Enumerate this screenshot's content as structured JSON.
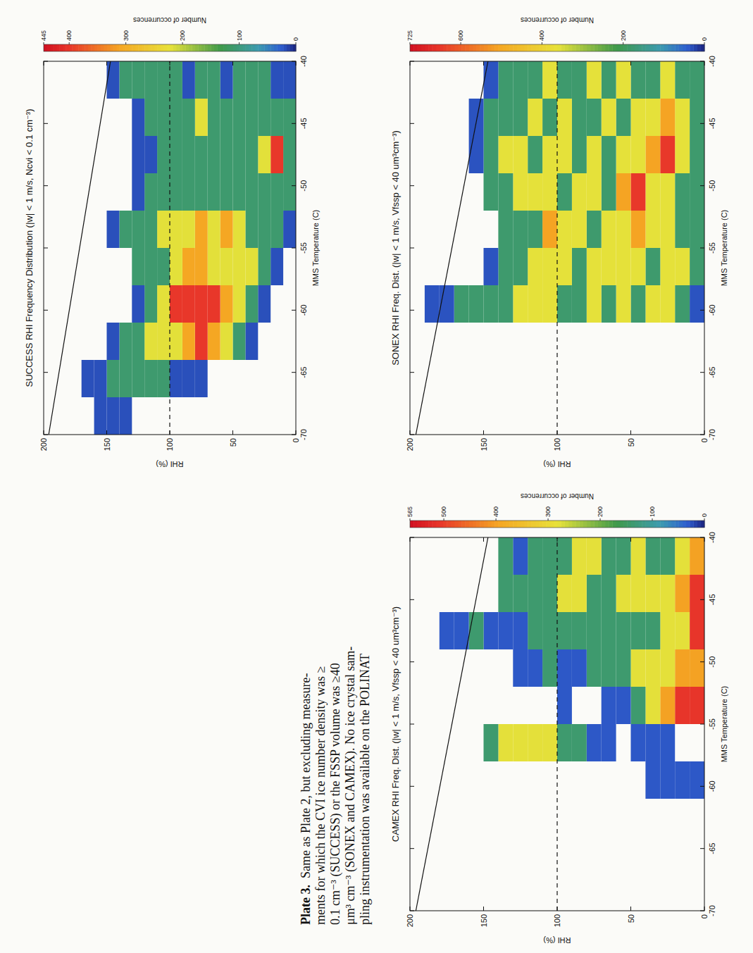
{
  "chart_data": [
    {
      "type": "heatmap",
      "title": "SUCCESS RHI Frequency Distribution (|w| < 1 m/s, Ncvi < 0.1 cm⁻³)",
      "x_label": "MMS Temperature (C)",
      "y_label": "RHI (%)",
      "xlim": [
        -70,
        -40
      ],
      "ylim": [
        0,
        200
      ],
      "xticks": [
        -70,
        -65,
        -60,
        -55,
        -50,
        -45,
        -40
      ],
      "yticks": [
        0,
        50,
        100,
        150,
        200
      ],
      "grid": false,
      "x_bins": [
        -70,
        -67,
        -64,
        -61,
        -58,
        -55,
        -52,
        -49,
        -46,
        -43,
        -40
      ],
      "y_bins": [
        0,
        10,
        20,
        30,
        40,
        50,
        60,
        70,
        80,
        90,
        100,
        110,
        120,
        130,
        140,
        150,
        160,
        170,
        180,
        190,
        200
      ],
      "cells": [
        [
          null,
          null,
          null,
          null,
          null,
          20,
          110,
          110,
          110,
          20
        ],
        [
          null,
          null,
          null,
          null,
          20,
          110,
          110,
          400,
          110,
          20
        ],
        [
          null,
          null,
          null,
          20,
          110,
          110,
          110,
          220,
          110,
          110
        ],
        [
          null,
          null,
          20,
          110,
          220,
          110,
          110,
          110,
          110,
          110
        ],
        [
          null,
          null,
          110,
          220,
          220,
          220,
          110,
          110,
          110,
          110
        ],
        [
          null,
          null,
          220,
          310,
          220,
          310,
          110,
          110,
          110,
          20
        ],
        [
          null,
          null,
          310,
          400,
          220,
          220,
          110,
          110,
          110,
          110
        ],
        [
          null,
          20,
          400,
          400,
          310,
          310,
          110,
          110,
          220,
          110
        ],
        [
          null,
          20,
          310,
          400,
          310,
          220,
          110,
          110,
          110,
          20
        ],
        [
          null,
          20,
          220,
          400,
          220,
          220,
          110,
          110,
          110,
          110
        ],
        [
          null,
          110,
          220,
          220,
          110,
          220,
          110,
          110,
          110,
          110
        ],
        [
          null,
          110,
          220,
          110,
          110,
          110,
          110,
          20,
          110,
          110
        ],
        [
          null,
          110,
          110,
          20,
          110,
          110,
          20,
          20,
          20,
          110
        ],
        [
          20,
          110,
          110,
          null,
          null,
          110,
          null,
          null,
          null,
          110
        ],
        [
          20,
          110,
          20,
          null,
          null,
          20,
          null,
          null,
          null,
          20
        ],
        [
          20,
          20,
          null,
          null,
          null,
          null,
          null,
          null,
          null,
          null
        ],
        [
          null,
          20,
          null,
          null,
          null,
          null,
          null,
          null,
          null,
          null
        ],
        [
          null,
          null,
          null,
          null,
          null,
          null,
          null,
          null,
          null,
          null
        ],
        [
          null,
          null,
          null,
          null,
          null,
          null,
          null,
          null,
          null,
          null
        ],
        [
          null,
          null,
          null,
          null,
          null,
          null,
          null,
          null,
          null,
          null
        ]
      ],
      "colorbar_label": "Number of occurrences",
      "colorbar_range": [
        0,
        445
      ],
      "colorbar_ticks": [
        0,
        100,
        200,
        300,
        400,
        445
      ],
      "series": [
        {
          "type": "line",
          "line_style": "solid",
          "x": [
            -70,
            -40
          ],
          "values": [
            196,
            147
          ]
        },
        {
          "type": "line",
          "line_style": "dashed",
          "x": [
            -70,
            -40
          ],
          "values": [
            100,
            100
          ]
        }
      ]
    },
    {
      "type": "heatmap",
      "title": "SONEX RHI Freq. Dist. (|w| < 1 m/s, Vfssp < 40 um³cm⁻³)",
      "x_label": "MMS Temperature (C)",
      "y_label": "RHI (%)",
      "xlim": [
        -70,
        -40
      ],
      "ylim": [
        0,
        200
      ],
      "xticks": [
        -70,
        -65,
        -60,
        -55,
        -50,
        -45,
        -40
      ],
      "yticks": [
        0,
        50,
        100,
        150,
        200
      ],
      "grid": false,
      "x_bins": [
        -70,
        -67,
        -64,
        -61,
        -58,
        -55,
        -52,
        -49,
        -46,
        -43,
        -40
      ],
      "y_bins": [
        0,
        10,
        20,
        30,
        40,
        50,
        60,
        70,
        80,
        90,
        100,
        110,
        120,
        130,
        140,
        150,
        160,
        170,
        180,
        190,
        200
      ],
      "cells": [
        [
          null,
          null,
          null,
          35,
          180,
          180,
          180,
          180,
          180,
          180
        ],
        [
          null,
          null,
          null,
          180,
          360,
          180,
          180,
          360,
          360,
          180
        ],
        [
          null,
          null,
          null,
          360,
          360,
          360,
          360,
          650,
          510,
          360
        ],
        [
          null,
          null,
          null,
          360,
          180,
          360,
          360,
          510,
          360,
          180
        ],
        [
          null,
          null,
          null,
          180,
          360,
          510,
          650,
          360,
          360,
          180
        ],
        [
          null,
          null,
          null,
          360,
          360,
          360,
          510,
          360,
          180,
          360
        ],
        [
          null,
          null,
          null,
          180,
          360,
          360,
          180,
          180,
          360,
          180
        ],
        [
          null,
          null,
          null,
          360,
          360,
          180,
          360,
          360,
          180,
          360
        ],
        [
          null,
          null,
          null,
          180,
          180,
          360,
          360,
          180,
          180,
          180
        ],
        [
          null,
          null,
          null,
          180,
          360,
          360,
          180,
          360,
          360,
          180
        ],
        [
          null,
          null,
          null,
          360,
          360,
          510,
          360,
          360,
          180,
          360
        ],
        [
          null,
          null,
          null,
          360,
          360,
          180,
          360,
          180,
          360,
          180
        ],
        [
          null,
          null,
          null,
          360,
          180,
          180,
          360,
          360,
          180,
          180
        ],
        [
          null,
          null,
          null,
          180,
          180,
          180,
          180,
          360,
          180,
          180
        ],
        [
          null,
          null,
          null,
          180,
          35,
          null,
          180,
          180,
          180,
          35
        ],
        [
          null,
          null,
          null,
          180,
          null,
          null,
          null,
          35,
          35,
          null
        ],
        [
          null,
          null,
          null,
          180,
          null,
          null,
          null,
          null,
          null,
          null
        ],
        [
          null,
          null,
          null,
          35,
          null,
          null,
          null,
          null,
          null,
          null
        ],
        [
          null,
          null,
          null,
          35,
          null,
          null,
          null,
          null,
          null,
          null
        ],
        [
          null,
          null,
          null,
          null,
          null,
          null,
          null,
          null,
          null,
          null
        ]
      ],
      "colorbar_label": "Number of occurrences",
      "colorbar_range": [
        0,
        725
      ],
      "colorbar_ticks": [
        0,
        200,
        400,
        600,
        725
      ],
      "series": [
        {
          "type": "line",
          "line_style": "solid",
          "x": [
            -70,
            -40
          ],
          "values": [
            196,
            147
          ]
        },
        {
          "type": "line",
          "line_style": "dashed",
          "x": [
            -70,
            -40
          ],
          "values": [
            100,
            100
          ]
        }
      ]
    },
    {
      "type": "heatmap",
      "title": "CAMEX RHI Freq. Dist. (|w| < 1 m/s, Vfssp < 40 um³cm⁻³)",
      "x_label": "MMS Temperature (C)",
      "y_label": "RHI (%)",
      "xlim": [
        -70,
        -40
      ],
      "ylim": [
        0,
        200
      ],
      "xticks": [
        -70,
        -65,
        -60,
        -55,
        -50,
        -45,
        -40
      ],
      "yticks": [
        0,
        50,
        100,
        150,
        200
      ],
      "grid": false,
      "x_bins": [
        -70,
        -67,
        -64,
        -61,
        -58,
        -55,
        -52,
        -49,
        -46,
        -43,
        -40
      ],
      "y_bins": [
        0,
        10,
        20,
        30,
        40,
        50,
        60,
        70,
        80,
        90,
        100,
        110,
        120,
        130,
        140,
        150,
        160,
        170,
        180,
        190,
        200
      ],
      "cells": [
        [
          null,
          null,
          null,
          30,
          null,
          510,
          400,
          510,
          510,
          400
        ],
        [
          null,
          null,
          null,
          30,
          null,
          510,
          400,
          280,
          400,
          280
        ],
        [
          null,
          null,
          null,
          30,
          30,
          400,
          280,
          280,
          280,
          140
        ],
        [
          null,
          null,
          null,
          30,
          30,
          280,
          280,
          140,
          280,
          140
        ],
        [
          null,
          null,
          null,
          null,
          30,
          140,
          280,
          140,
          280,
          280
        ],
        [
          null,
          null,
          null,
          null,
          null,
          30,
          140,
          140,
          280,
          140
        ],
        [
          null,
          null,
          null,
          null,
          30,
          30,
          140,
          140,
          140,
          140
        ],
        [
          null,
          null,
          null,
          null,
          30,
          null,
          140,
          140,
          140,
          280
        ],
        [
          null,
          null,
          null,
          null,
          140,
          null,
          30,
          140,
          280,
          280
        ],
        [
          null,
          null,
          null,
          null,
          140,
          30,
          30,
          140,
          280,
          140
        ],
        [
          null,
          null,
          null,
          null,
          280,
          null,
          140,
          140,
          140,
          140
        ],
        [
          null,
          null,
          null,
          null,
          280,
          null,
          30,
          140,
          140,
          140
        ],
        [
          null,
          null,
          null,
          null,
          280,
          null,
          30,
          30,
          140,
          30
        ],
        [
          null,
          null,
          null,
          null,
          280,
          null,
          null,
          30,
          140,
          140
        ],
        [
          null,
          null,
          null,
          null,
          140,
          null,
          null,
          30,
          null,
          null
        ],
        [
          null,
          null,
          null,
          null,
          null,
          null,
          null,
          140,
          null,
          null
        ],
        [
          null,
          null,
          null,
          null,
          null,
          null,
          null,
          30,
          null,
          null
        ],
        [
          null,
          null,
          null,
          null,
          null,
          null,
          null,
          30,
          null,
          null
        ],
        [
          null,
          null,
          null,
          null,
          null,
          null,
          null,
          null,
          null,
          null
        ],
        [
          null,
          null,
          null,
          null,
          null,
          null,
          null,
          null,
          null,
          null
        ]
      ],
      "colorbar_label": "Number of occurrences",
      "colorbar_range": [
        0,
        565
      ],
      "colorbar_ticks": [
        0,
        100,
        200,
        300,
        400,
        500,
        565
      ],
      "series": [
        {
          "type": "line",
          "line_style": "solid",
          "x": [
            -70,
            -40
          ],
          "values": [
            196,
            147
          ]
        },
        {
          "type": "line",
          "line_style": "dashed",
          "x": [
            -70,
            -40
          ],
          "values": [
            100,
            100
          ]
        }
      ]
    }
  ],
  "caption": {
    "label": "Plate 3.",
    "lines": [
      "Same as Plate 2, but excluding measure-",
      "ments for which the CVI ice number density was ≥",
      "0.1 cm⁻³ (SUCCESS) or the FSSP volume was ≥40",
      "μm³ cm⁻³ (SONEX and CAMEX). No ice crystal sam-",
      "pling instrumentation was available on the POLINAT"
    ]
  }
}
